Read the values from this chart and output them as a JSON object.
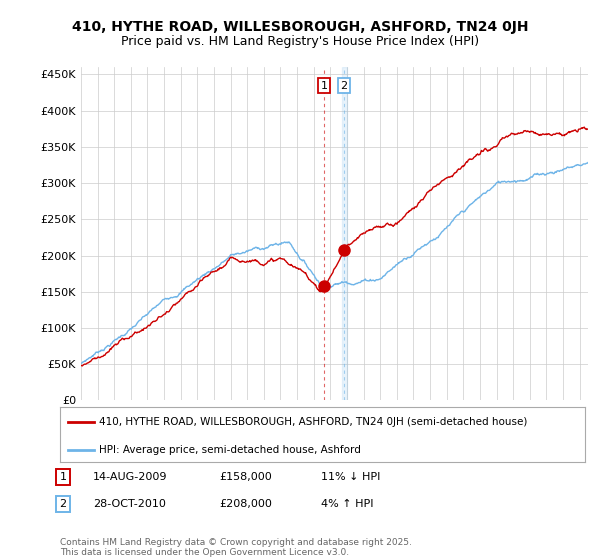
{
  "title": "410, HYTHE ROAD, WILLESBOROUGH, ASHFORD, TN24 0JH",
  "subtitle": "Price paid vs. HM Land Registry's House Price Index (HPI)",
  "ylabel_ticks": [
    "£0",
    "£50K",
    "£100K",
    "£150K",
    "£200K",
    "£250K",
    "£300K",
    "£350K",
    "£400K",
    "£450K"
  ],
  "ytick_values": [
    0,
    50000,
    100000,
    150000,
    200000,
    250000,
    300000,
    350000,
    400000,
    450000
  ],
  "ylim": [
    0,
    460000
  ],
  "xlim_start": 1995.0,
  "xlim_end": 2025.5,
  "marker1_x": 2009.62,
  "marker1_y": 158000,
  "marker2_x": 2010.83,
  "marker2_y": 208000,
  "legend_line1": "410, HYTHE ROAD, WILLESBOROUGH, ASHFORD, TN24 0JH (semi-detached house)",
  "legend_line2": "HPI: Average price, semi-detached house, Ashford",
  "table_row1": [
    "1",
    "14-AUG-2009",
    "£158,000",
    "11% ↓ HPI"
  ],
  "table_row2": [
    "2",
    "28-OCT-2010",
    "£208,000",
    "4% ↑ HPI"
  ],
  "footer": "Contains HM Land Registry data © Crown copyright and database right 2025.\nThis data is licensed under the Open Government Licence v3.0.",
  "hpi_color": "#6eb4e8",
  "price_color": "#cc0000",
  "vline_color_1": "#cc0000",
  "vline_color_2": "#6eb4e8",
  "background_color": "#ffffff",
  "grid_color": "#cccccc",
  "title_fontsize": 10,
  "subtitle_fontsize": 9
}
